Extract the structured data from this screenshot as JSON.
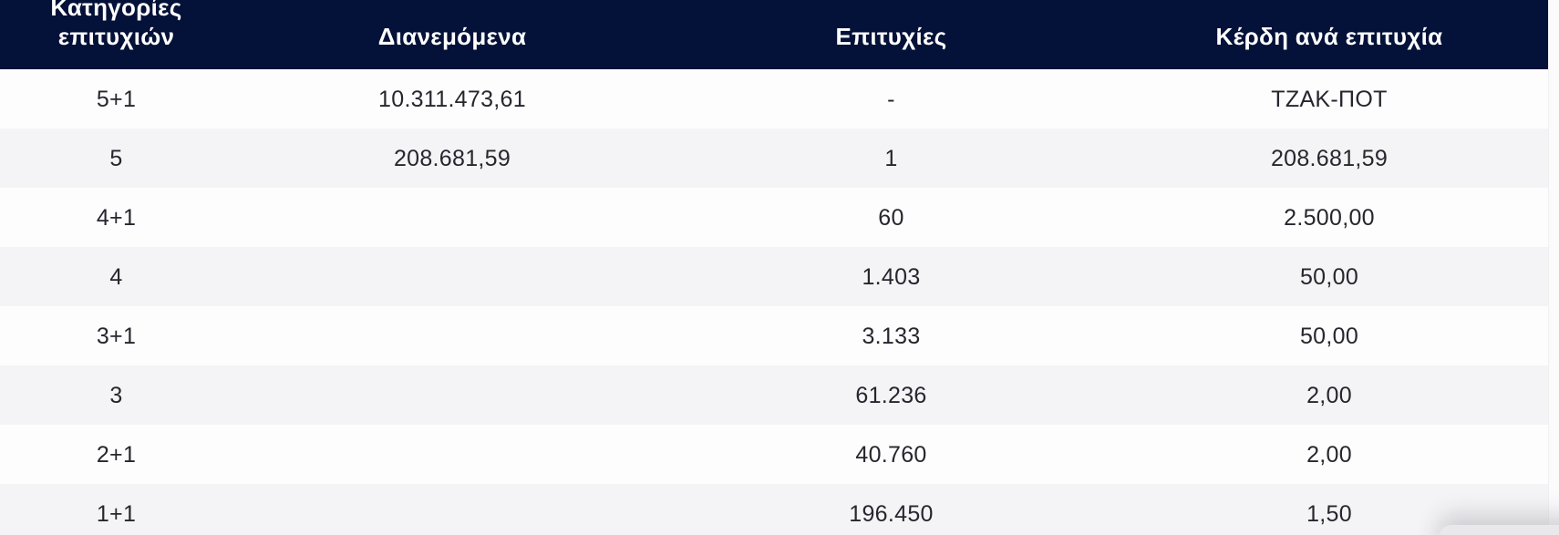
{
  "table": {
    "columns": [
      {
        "key": "category",
        "label": "Κατηγορίες επιτυχιών"
      },
      {
        "key": "distributed",
        "label": "Διανεμόμενα"
      },
      {
        "key": "wins",
        "label": "Επιτυχίες"
      },
      {
        "key": "winnings",
        "label": "Κέρδη ανά επιτυχία"
      }
    ],
    "rows": [
      {
        "category": "5+1",
        "distributed": "10.311.473,61",
        "wins": "-",
        "winnings": "ΤΖΑΚ-ΠΟΤ"
      },
      {
        "category": "5",
        "distributed": "208.681,59",
        "wins": "1",
        "winnings": "208.681,59"
      },
      {
        "category": "4+1",
        "distributed": "",
        "wins": "60",
        "winnings": "2.500,00"
      },
      {
        "category": "4",
        "distributed": "",
        "wins": "1.403",
        "winnings": "50,00"
      },
      {
        "category": "3+1",
        "distributed": "",
        "wins": "3.133",
        "winnings": "50,00"
      },
      {
        "category": "3",
        "distributed": "",
        "wins": "61.236",
        "winnings": "2,00"
      },
      {
        "category": "2+1",
        "distributed": "",
        "wins": "40.760",
        "winnings": "2,00"
      },
      {
        "category": "1+1",
        "distributed": "",
        "wins": "196.450",
        "winnings": "1,50"
      }
    ]
  },
  "colors": {
    "navy": "#041138",
    "header_text": "#ffffff",
    "body_text": "#26262e",
    "row_white": "#fdfdfd",
    "row_gray": "#f4f4f6",
    "widget_gray": "#e9e9eb"
  }
}
